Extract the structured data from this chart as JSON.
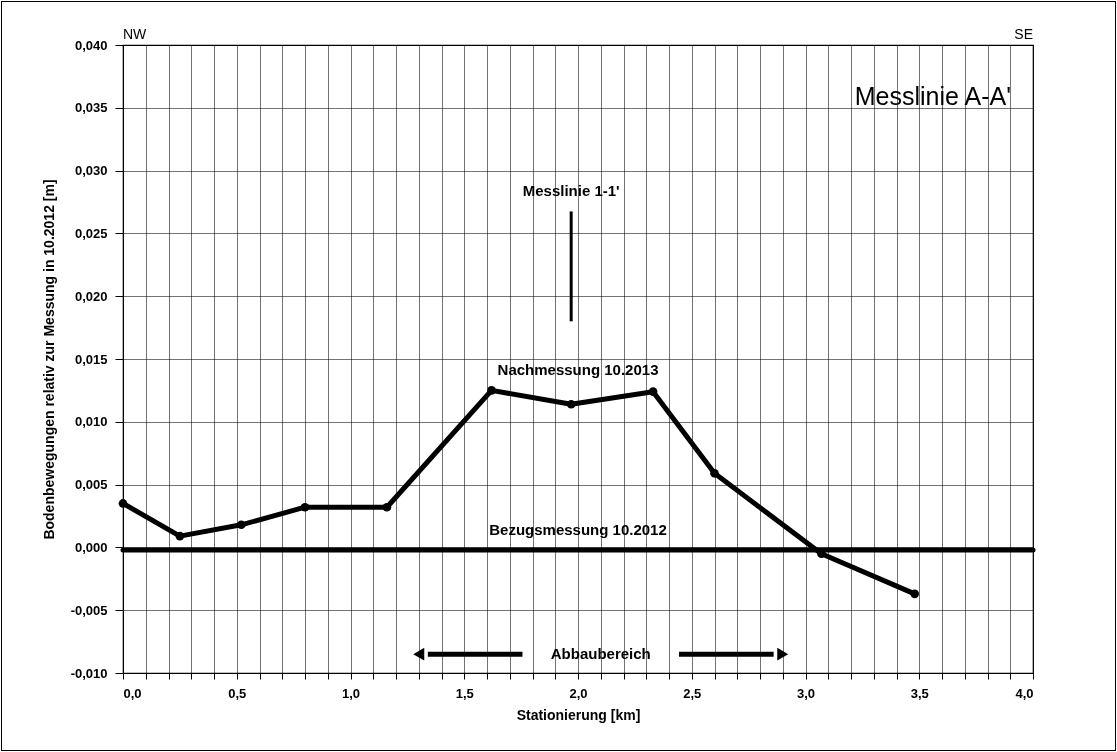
{
  "chart_data": {
    "type": "line",
    "title": "Messlinie A-A'",
    "xlabel": "Stationierung [km]",
    "ylabel": "Bodenbewegungen relativ zur Messung in 10.2012 [m]",
    "series": [
      {
        "name": "Nachmessung 10.2013",
        "color": "#000000",
        "x": [
          0,
          0.25,
          0.52,
          0.8,
          1.16,
          1.62,
          1.97,
          2.33,
          2.6,
          3.07,
          3.48
        ],
        "values": [
          0.0035,
          0.0009,
          0.0018,
          0.0032,
          0.0032,
          0.0125,
          0.0114,
          0.0124,
          0.0059,
          -0.0005,
          -0.0037
        ]
      },
      {
        "name": "Bezugsmessung 10.2012",
        "color": "#000000",
        "x": [
          0,
          4
        ],
        "values": [
          -0.0002,
          -0.0002
        ],
        "marker": "none"
      }
    ],
    "annotations": [
      "NW",
      "SE",
      "Messlinie 1-1'",
      "Abbaubereich"
    ],
    "xlim": [
      0,
      4
    ],
    "ylim": [
      -0.01,
      0.04
    ],
    "xticks": [
      {
        "value": 0,
        "label": "0,0"
      },
      {
        "value": 0.1,
        "label": null
      },
      {
        "value": 0.2,
        "label": null
      },
      {
        "value": 0.3,
        "label": null
      },
      {
        "value": 0.4,
        "label": null
      },
      {
        "value": 0.5,
        "label": "0,5"
      },
      {
        "value": 0.6,
        "label": null
      },
      {
        "value": 0.7,
        "label": null
      },
      {
        "value": 0.8,
        "label": null
      },
      {
        "value": 0.9,
        "label": null
      },
      {
        "value": 1,
        "label": "1,0"
      },
      {
        "value": 1.1,
        "label": null
      },
      {
        "value": 1.2,
        "label": null
      },
      {
        "value": 1.3,
        "label": null
      },
      {
        "value": 1.4,
        "label": null
      },
      {
        "value": 1.5,
        "label": "1,5"
      },
      {
        "value": 1.6,
        "label": null
      },
      {
        "value": 1.7,
        "label": null
      },
      {
        "value": 1.8,
        "label": null
      },
      {
        "value": 1.9,
        "label": null
      },
      {
        "value": 2,
        "label": "2,0"
      },
      {
        "value": 2.1,
        "label": null
      },
      {
        "value": 2.2,
        "label": null
      },
      {
        "value": 2.3,
        "label": null
      },
      {
        "value": 2.4,
        "label": null
      },
      {
        "value": 2.5,
        "label": "2,5"
      },
      {
        "value": 2.6,
        "label": null
      },
      {
        "value": 2.7,
        "label": null
      },
      {
        "value": 2.8,
        "label": null
      },
      {
        "value": 2.9,
        "label": null
      },
      {
        "value": 3,
        "label": "3,0"
      },
      {
        "value": 3.1,
        "label": null
      },
      {
        "value": 3.2,
        "label": null
      },
      {
        "value": 3.3,
        "label": null
      },
      {
        "value": 3.4,
        "label": null
      },
      {
        "value": 3.5,
        "label": "3,5"
      },
      {
        "value": 3.6,
        "label": null
      },
      {
        "value": 3.7,
        "label": null
      },
      {
        "value": 3.8,
        "label": null
      },
      {
        "value": 3.9,
        "label": null
      },
      {
        "value": 4,
        "label": "4,0"
      }
    ],
    "yticks": [
      {
        "value": -0.01,
        "label": "-0,010"
      },
      {
        "value": -0.005,
        "label": "-0,005"
      },
      {
        "value": 0,
        "label": "0,000"
      },
      {
        "value": 0.005,
        "label": "0,005"
      },
      {
        "value": 0.01,
        "label": "0,010"
      },
      {
        "value": 0.015,
        "label": "0,015"
      },
      {
        "value": 0.02,
        "label": "0,020"
      },
      {
        "value": 0.025,
        "label": "0,025"
      },
      {
        "value": 0.03,
        "label": "0,030"
      },
      {
        "value": 0.035,
        "label": "0,035"
      },
      {
        "value": 0.04,
        "label": "0,040"
      }
    ],
    "grid": true,
    "marker": "circle",
    "line_style": "solid"
  }
}
